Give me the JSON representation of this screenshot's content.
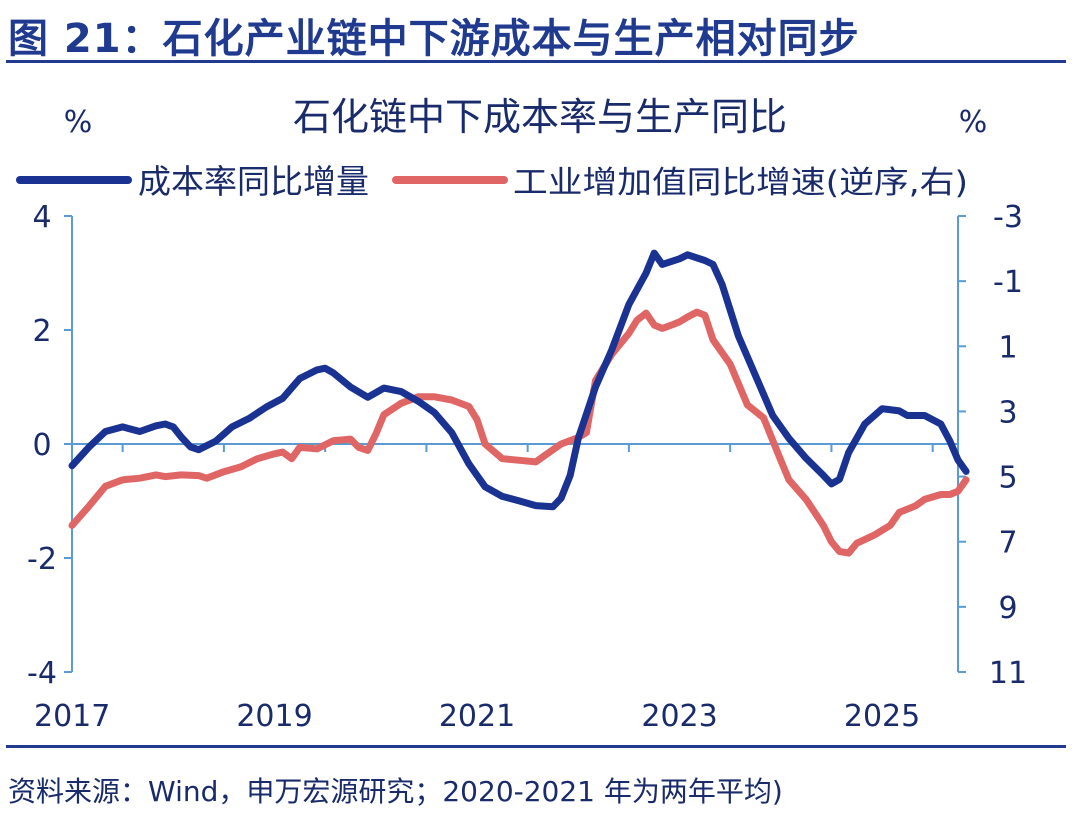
{
  "figure_title": "图 21：石化产业链中下游成本与生产相对同步",
  "source_note": "资料来源：Wind，申万宏源研究；2020-2021 年为两年平均)",
  "chart_data": {
    "type": "line",
    "title": "石化链中下成本率与生产同比",
    "left_unit": "%",
    "right_unit": "%",
    "x_ticks": [
      "2017",
      "2019",
      "2021",
      "2023",
      "2025"
    ],
    "x_range": [
      2017.0,
      2025.75
    ],
    "y_left_range": [
      -4,
      4
    ],
    "y_left_ticks": [
      "4",
      "2",
      "0",
      "-2",
      "-4"
    ],
    "y_right_range": [
      -3,
      11
    ],
    "y_right_inverted": true,
    "y_right_ticks": [
      "-3",
      "-1",
      "1",
      "3",
      "5",
      "7",
      "9",
      "11"
    ],
    "legend_position": "top",
    "colors": {
      "series1": "#1a3291",
      "series2": "#e06666",
      "axis": "#5b9bd5"
    },
    "series": [
      {
        "name": "成本率同比增量",
        "axis": "left",
        "points": [
          [
            2017.0,
            -0.38
          ],
          [
            2017.17,
            -0.05
          ],
          [
            2017.33,
            0.22
          ],
          [
            2017.5,
            0.3
          ],
          [
            2017.67,
            0.22
          ],
          [
            2017.83,
            0.32
          ],
          [
            2017.92,
            0.35
          ],
          [
            2018.0,
            0.3
          ],
          [
            2018.08,
            0.12
          ],
          [
            2018.17,
            -0.05
          ],
          [
            2018.25,
            -0.1
          ],
          [
            2018.42,
            0.05
          ],
          [
            2018.58,
            0.3
          ],
          [
            2018.75,
            0.45
          ],
          [
            2018.92,
            0.65
          ],
          [
            2019.08,
            0.8
          ],
          [
            2019.25,
            1.15
          ],
          [
            2019.42,
            1.3
          ],
          [
            2019.5,
            1.33
          ],
          [
            2019.58,
            1.25
          ],
          [
            2019.75,
            1.0
          ],
          [
            2019.92,
            0.82
          ],
          [
            2020.08,
            0.98
          ],
          [
            2020.25,
            0.92
          ],
          [
            2020.42,
            0.75
          ],
          [
            2020.58,
            0.55
          ],
          [
            2020.75,
            0.2
          ],
          [
            2020.92,
            -0.35
          ],
          [
            2021.08,
            -0.75
          ],
          [
            2021.25,
            -0.92
          ],
          [
            2021.42,
            -1.0
          ],
          [
            2021.58,
            -1.08
          ],
          [
            2021.75,
            -1.1
          ],
          [
            2021.83,
            -0.95
          ],
          [
            2021.92,
            -0.55
          ],
          [
            2022.0,
            0.1
          ],
          [
            2022.17,
            1.0
          ],
          [
            2022.33,
            1.65
          ],
          [
            2022.5,
            2.45
          ],
          [
            2022.67,
            3.0
          ],
          [
            2022.75,
            3.35
          ],
          [
            2022.83,
            3.15
          ],
          [
            2023.0,
            3.25
          ],
          [
            2023.08,
            3.32
          ],
          [
            2023.25,
            3.22
          ],
          [
            2023.33,
            3.15
          ],
          [
            2023.42,
            2.8
          ],
          [
            2023.58,
            1.9
          ],
          [
            2023.75,
            1.2
          ],
          [
            2023.92,
            0.5
          ],
          [
            2024.08,
            0.1
          ],
          [
            2024.25,
            -0.25
          ],
          [
            2024.42,
            -0.55
          ],
          [
            2024.5,
            -0.7
          ],
          [
            2024.58,
            -0.62
          ],
          [
            2024.67,
            -0.15
          ],
          [
            2024.83,
            0.35
          ],
          [
            2025.0,
            0.62
          ],
          [
            2025.17,
            0.58
          ],
          [
            2025.25,
            0.5
          ],
          [
            2025.42,
            0.5
          ],
          [
            2025.58,
            0.35
          ],
          [
            2025.67,
            0.05
          ],
          [
            2025.75,
            -0.28
          ],
          [
            2025.83,
            -0.48
          ]
        ]
      },
      {
        "name": "工业增加值同比增速(逆序,右)",
        "axis": "right",
        "points": [
          [
            2017.0,
            6.5
          ],
          [
            2017.17,
            5.9
          ],
          [
            2017.33,
            5.3
          ],
          [
            2017.5,
            5.1
          ],
          [
            2017.67,
            5.05
          ],
          [
            2017.83,
            4.95
          ],
          [
            2017.92,
            5.0
          ],
          [
            2018.08,
            4.95
          ],
          [
            2018.25,
            4.97
          ],
          [
            2018.33,
            5.05
          ],
          [
            2018.5,
            4.85
          ],
          [
            2018.67,
            4.7
          ],
          [
            2018.83,
            4.45
          ],
          [
            2019.0,
            4.3
          ],
          [
            2019.08,
            4.25
          ],
          [
            2019.17,
            4.45
          ],
          [
            2019.25,
            4.1
          ],
          [
            2019.42,
            4.15
          ],
          [
            2019.58,
            3.9
          ],
          [
            2019.75,
            3.85
          ],
          [
            2019.83,
            4.1
          ],
          [
            2019.92,
            4.2
          ],
          [
            2020.0,
            3.7
          ],
          [
            2020.08,
            3.1
          ],
          [
            2020.25,
            2.75
          ],
          [
            2020.42,
            2.55
          ],
          [
            2020.58,
            2.55
          ],
          [
            2020.75,
            2.65
          ],
          [
            2020.92,
            2.85
          ],
          [
            2021.0,
            3.25
          ],
          [
            2021.08,
            4.0
          ],
          [
            2021.25,
            4.45
          ],
          [
            2021.42,
            4.5
          ],
          [
            2021.58,
            4.55
          ],
          [
            2021.67,
            4.35
          ],
          [
            2021.83,
            4.0
          ],
          [
            2022.0,
            3.8
          ],
          [
            2022.08,
            3.65
          ],
          [
            2022.17,
            2.05
          ],
          [
            2022.33,
            1.25
          ],
          [
            2022.5,
            0.6
          ],
          [
            2022.58,
            0.2
          ],
          [
            2022.67,
            -0.02
          ],
          [
            2022.75,
            0.35
          ],
          [
            2022.83,
            0.45
          ],
          [
            2022.92,
            0.35
          ],
          [
            2023.0,
            0.25
          ],
          [
            2023.08,
            0.1
          ],
          [
            2023.17,
            -0.05
          ],
          [
            2023.25,
            0.05
          ],
          [
            2023.33,
            0.8
          ],
          [
            2023.5,
            1.55
          ],
          [
            2023.67,
            2.8
          ],
          [
            2023.83,
            3.2
          ],
          [
            2024.0,
            4.5
          ],
          [
            2024.08,
            5.1
          ],
          [
            2024.25,
            5.7
          ],
          [
            2024.42,
            6.5
          ],
          [
            2024.5,
            7.0
          ],
          [
            2024.58,
            7.3
          ],
          [
            2024.67,
            7.35
          ],
          [
            2024.75,
            7.05
          ],
          [
            2024.92,
            6.8
          ],
          [
            2025.08,
            6.5
          ],
          [
            2025.17,
            6.1
          ],
          [
            2025.33,
            5.9
          ],
          [
            2025.42,
            5.7
          ],
          [
            2025.58,
            5.55
          ],
          [
            2025.67,
            5.55
          ],
          [
            2025.75,
            5.45
          ],
          [
            2025.83,
            5.1
          ]
        ]
      }
    ]
  }
}
